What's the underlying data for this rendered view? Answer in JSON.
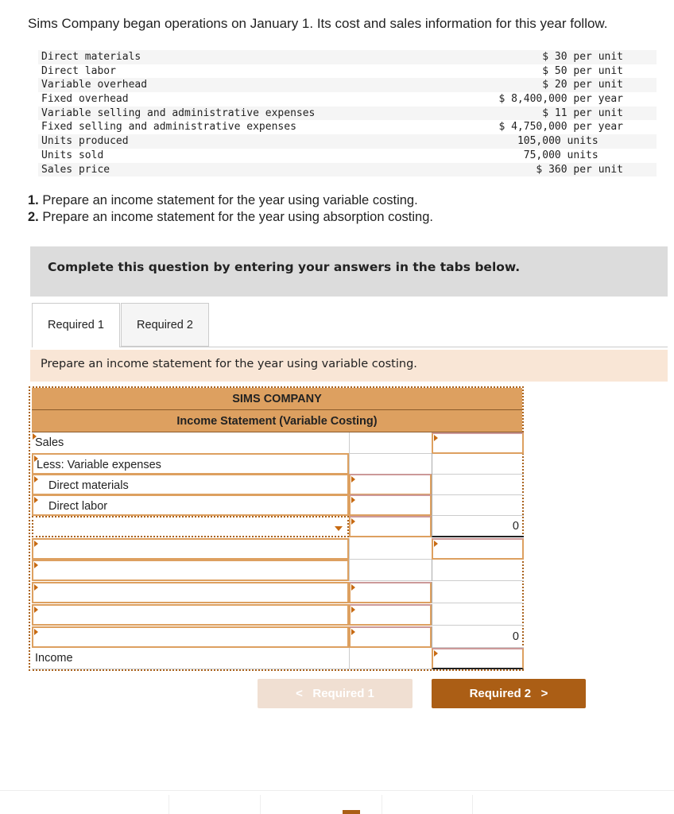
{
  "intro": "Sims Company began operations on January 1. Its cost and sales information for this year follow.",
  "facts": [
    {
      "label": "Direct materials",
      "value": "$ 30 per unit"
    },
    {
      "label": "Direct labor",
      "value": "$ 50 per unit"
    },
    {
      "label": "Variable overhead",
      "value": "$ 20 per unit"
    },
    {
      "label": "Fixed overhead",
      "value": "$ 8,400,000 per year"
    },
    {
      "label": "Variable selling and administrative expenses",
      "value": "$ 11 per unit"
    },
    {
      "label": "Fixed selling and administrative expenses",
      "value": "$ 4,750,000 per year"
    },
    {
      "label": "Units produced",
      "value": "105,000 units    "
    },
    {
      "label": "Units sold",
      "value": "75,000 units    "
    },
    {
      "label": "Sales price",
      "value": "$ 360 per unit"
    }
  ],
  "requirements": [
    {
      "num": "1.",
      "text": " Prepare an income statement for the year using variable costing."
    },
    {
      "num": "2.",
      "text": " Prepare an income statement for the year using absorption costing."
    }
  ],
  "banner": "Complete this question by entering your answers in the tabs below.",
  "tabs": [
    "Required 1",
    "Required 2"
  ],
  "prompt": "Prepare an income statement for the year using variable costing.",
  "statement": {
    "company": "SIMS COMPANY",
    "title": "Income Statement (Variable Costing)",
    "rows": [
      {
        "label": "Sales",
        "col3": ""
      },
      {
        "label": "Less: Variable expenses",
        "col3": ""
      },
      {
        "label": "Direct materials",
        "col3": ""
      },
      {
        "label": "Direct labor",
        "col3": ""
      },
      {
        "label": "",
        "col3": "0"
      },
      {
        "label": "",
        "col3": ""
      },
      {
        "label": "",
        "col3": ""
      },
      {
        "label": "",
        "col3": ""
      },
      {
        "label": "",
        "col3": ""
      },
      {
        "label": "",
        "col3": "0"
      },
      {
        "label": "Income",
        "col3": ""
      }
    ]
  },
  "nav": {
    "prev": "Required 1",
    "next": "Required 2",
    "prev_icon": "chevron-left",
    "next_icon": "chevron-right"
  },
  "colors": {
    "accent": "#ab5e15",
    "header": "#dda060",
    "prompt_bg": "#f9e6d6"
  }
}
